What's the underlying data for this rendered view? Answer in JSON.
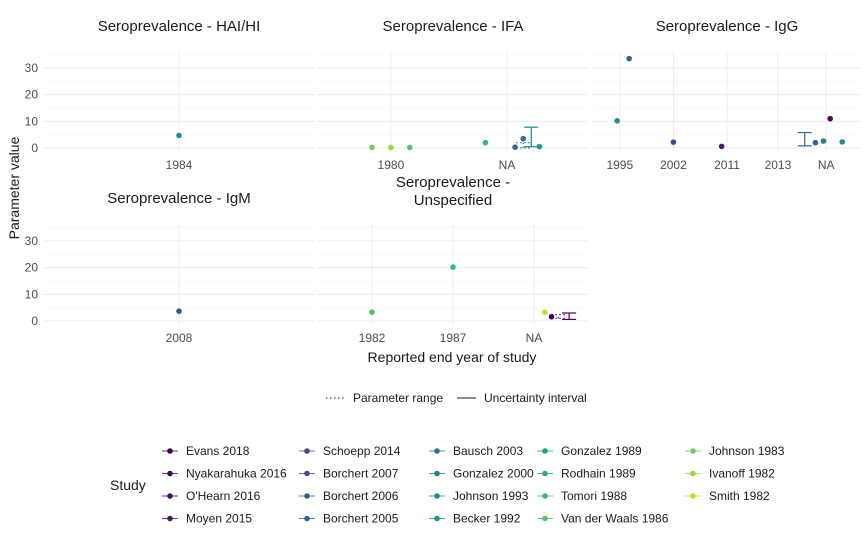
{
  "chart_data": {
    "type": "scatter",
    "xlabel": "Reported end year of study",
    "ylabel": "Parameter value",
    "linetype_legend": [
      {
        "key": "dotted",
        "label": "Parameter range"
      },
      {
        "key": "solid",
        "label": "Uncertainty interval"
      }
    ],
    "legend_title": "Study",
    "studies": [
      {
        "name": "Evans 2018",
        "color": "#440154"
      },
      {
        "name": "Nyakarahuka 2016",
        "color": "#46085c"
      },
      {
        "name": "O'Hearn 2016",
        "color": "#471063"
      },
      {
        "name": "Moyen 2015",
        "color": "#481a6c"
      },
      {
        "name": "Schoepp 2014",
        "color": "#3e4a89"
      },
      {
        "name": "Borchert 2007",
        "color": "#3b528b"
      },
      {
        "name": "Borchert 2006",
        "color": "#355f8d"
      },
      {
        "name": "Borchert 2005",
        "color": "#31688e"
      },
      {
        "name": "Bausch 2003",
        "color": "#2c728e"
      },
      {
        "name": "Gonzalez 2000",
        "color": "#287d8e"
      },
      {
        "name": "Johnson 1993",
        "color": "#24878e"
      },
      {
        "name": "Becker 1992",
        "color": "#21918c"
      },
      {
        "name": "Gonzalez 1989",
        "color": "#1f9e89"
      },
      {
        "name": "Rodhain 1989",
        "color": "#25ac82"
      },
      {
        "name": "Tomori 1988",
        "color": "#35b779"
      },
      {
        "name": "Van der Waals 1986",
        "color": "#4ec36b"
      },
      {
        "name": "Johnson 1983",
        "color": "#6ece58"
      },
      {
        "name": "Ivanoff 1982",
        "color": "#95d840"
      },
      {
        "name": "Smith 1982",
        "color": "#bddf26"
      }
    ],
    "panels": [
      {
        "title_lines": [
          "Seroprevalence - HAI/HI"
        ],
        "xticks": [
          {
            "label": "1984",
            "pos": 0.5
          }
        ],
        "points": [
          {
            "pos": 0.5,
            "y": 4.7,
            "study": "Becker 1992"
          }
        ],
        "intervals": []
      },
      {
        "title_lines": [
          "Seroprevalence - IFA"
        ],
        "xticks": [
          {
            "label": "1980",
            "pos": 0.27
          },
          {
            "label": "NA",
            "pos": 0.7
          }
        ],
        "points": [
          {
            "pos": 0.2,
            "y": 0.2,
            "study": "Johnson 1983"
          },
          {
            "pos": 0.27,
            "y": 0.2,
            "study": "Ivanoff 1982"
          },
          {
            "pos": 0.34,
            "y": 0.2,
            "study": "Van der Waals 1986"
          },
          {
            "pos": 0.62,
            "y": 2.0,
            "study": "Tomori 1988"
          },
          {
            "pos": 0.73,
            "y": 0.3,
            "study": "Borchert 2005"
          },
          {
            "pos": 0.76,
            "y": 3.5,
            "study": "Bausch 2003"
          },
          {
            "pos": 0.82,
            "y": 0.5,
            "study": "Gonzalez 1989"
          }
        ],
        "intervals": [
          {
            "pos": 0.79,
            "low": 0.5,
            "high": 7.8,
            "study": "Johnson 1993",
            "linetype": "solid"
          },
          {
            "pos": 0.76,
            "low": 0.0,
            "high": 2.0,
            "study": "Borchert 2005",
            "linetype": "dotted"
          }
        ]
      },
      {
        "title_lines": [
          "Seroprevalence - IgG"
        ],
        "xticks": [
          {
            "label": "1995",
            "pos": 0.1
          },
          {
            "label": "2002",
            "pos": 0.3
          },
          {
            "label": "2011",
            "pos": 0.5
          },
          {
            "label": "2013",
            "pos": 0.69
          },
          {
            "label": "NA",
            "pos": 0.87
          }
        ],
        "points": [
          {
            "pos": 0.09,
            "y": 10.2,
            "study": "Becker 1992"
          },
          {
            "pos": 0.135,
            "y": 33.5,
            "study": "Borchert 2005"
          },
          {
            "pos": 0.3,
            "y": 2.2,
            "study": "Schoepp 2014"
          },
          {
            "pos": 0.48,
            "y": 0.6,
            "study": "Moyen 2015"
          },
          {
            "pos": 0.83,
            "y": 2.0,
            "study": "Borchert 2006"
          },
          {
            "pos": 0.86,
            "y": 2.6,
            "study": "Gonzalez 2000"
          },
          {
            "pos": 0.885,
            "y": 11.0,
            "study": "Nyakarahuka 2016"
          },
          {
            "pos": 0.93,
            "y": 2.3,
            "study": "Becker 1992"
          }
        ],
        "intervals": [
          {
            "pos": 0.79,
            "low": 0.8,
            "high": 5.8,
            "study": "Borchert 2005",
            "linetype": "solid"
          }
        ]
      },
      {
        "title_lines": [
          "Seroprevalence - IgM"
        ],
        "xticks": [
          {
            "label": "2008",
            "pos": 0.5
          }
        ],
        "points": [
          {
            "pos": 0.5,
            "y": 3.7,
            "study": "Borchert 2007"
          }
        ],
        "intervals": []
      },
      {
        "title_lines": [
          "Seroprevalence -",
          "Unspecified"
        ],
        "xticks": [
          {
            "label": "1982",
            "pos": 0.2
          },
          {
            "label": "1987",
            "pos": 0.5
          },
          {
            "label": "NA",
            "pos": 0.8
          }
        ],
        "points": [
          {
            "pos": 0.2,
            "y": 3.3,
            "study": "Van der Waals 1986"
          },
          {
            "pos": 0.5,
            "y": 20.2,
            "study": "Tomori 1988"
          },
          {
            "pos": 0.84,
            "y": 3.3,
            "study": "Smith 1982"
          },
          {
            "pos": 0.865,
            "y": 1.6,
            "study": "Evans 2018"
          }
        ],
        "intervals": [
          {
            "pos": 0.93,
            "low": 0.6,
            "high": 3.0,
            "study": "Nyakarahuka 2016",
            "linetype": "solid"
          },
          {
            "pos": 0.89,
            "low": 1.0,
            "high": 2.4,
            "study": "O'Hearn 2016",
            "linetype": "dotted"
          }
        ]
      }
    ],
    "yticks": [
      0,
      10,
      20,
      30
    ],
    "ylim": [
      -1.5,
      36
    ]
  }
}
